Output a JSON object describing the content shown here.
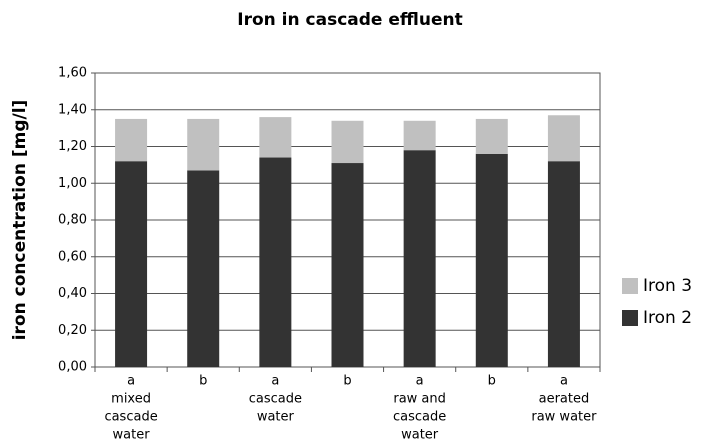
{
  "chart_data": {
    "type": "stacked_bar",
    "title": "Iron in cascade effluent",
    "y_label": "iron concentration [mg/l]",
    "categories": [
      [
        "a",
        "mixed",
        "cascade",
        "water"
      ],
      [
        "b"
      ],
      [
        "a",
        "cascade",
        "water"
      ],
      [
        "b"
      ],
      [
        "a",
        "raw and",
        "cascade",
        "water"
      ],
      [
        "b"
      ],
      [
        "a",
        "aerated",
        "raw water"
      ]
    ],
    "series": [
      {
        "name": "Iron 2",
        "color": "#333333",
        "values": [
          1.12,
          1.07,
          1.14,
          1.11,
          1.18,
          1.16,
          1.12
        ]
      },
      {
        "name": "Iron 3",
        "color": "#c0c0c0",
        "values": [
          0.23,
          0.28,
          0.22,
          0.23,
          0.16,
          0.19,
          0.25
        ]
      }
    ],
    "ylim": [
      0,
      1.6
    ],
    "yticks": [
      {
        "value": 0,
        "label": "0,00"
      },
      {
        "value": 0.2,
        "label": "0,20"
      },
      {
        "value": 0.4,
        "label": "0,40"
      },
      {
        "value": 0.6,
        "label": "0,60"
      },
      {
        "value": 0.8,
        "label": "0,80"
      },
      {
        "value": 1.0,
        "label": "1,00"
      },
      {
        "value": 1.2,
        "label": "1,20"
      },
      {
        "value": 1.4,
        "label": "1,40"
      },
      {
        "value": 1.6,
        "label": "1,60"
      }
    ],
    "grid": true
  }
}
